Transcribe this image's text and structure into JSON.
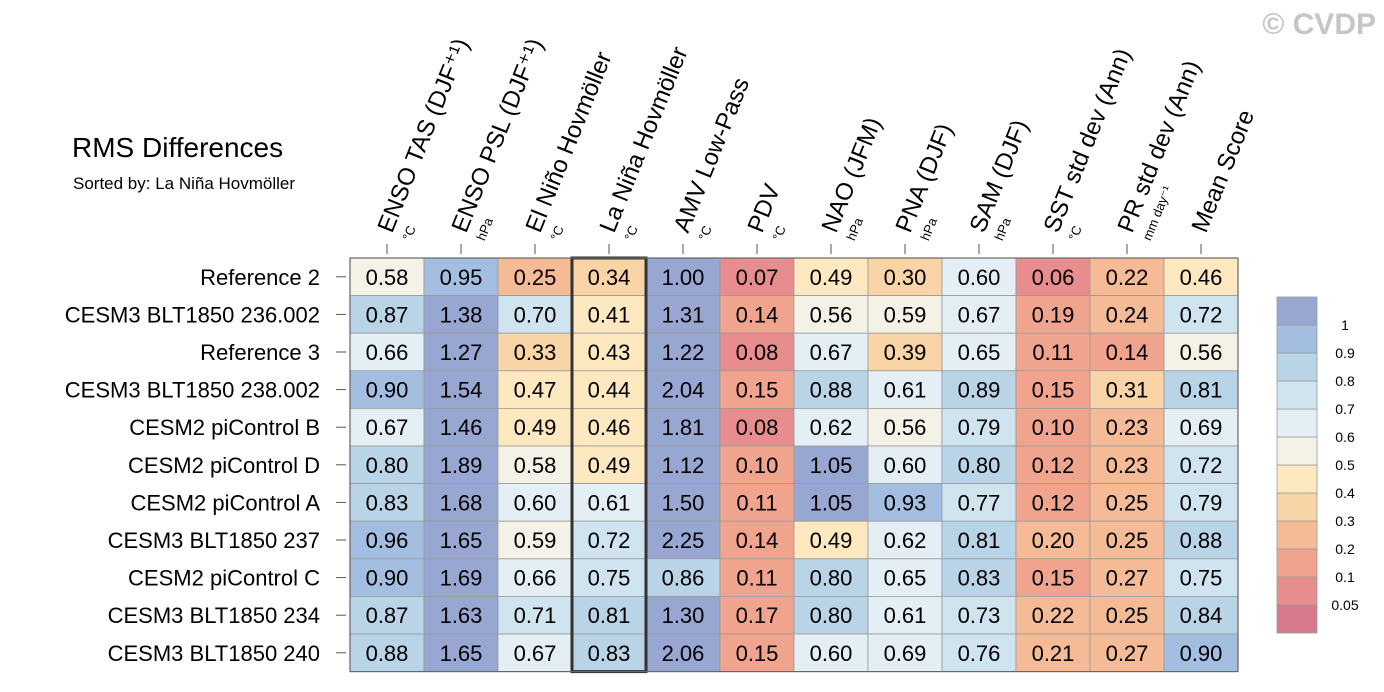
{
  "title": "RMS Differences",
  "subtitle": "Sorted by: La Niña Hovmöller",
  "watermark": "© CVDP",
  "chart_data": {
    "type": "heatmap",
    "highlight_column": 3,
    "columns": [
      {
        "name": "ENSO TAS (DJF⁺¹)",
        "unit": "°C"
      },
      {
        "name": "ENSO PSL (DJF⁺¹)",
        "unit": "hPa"
      },
      {
        "name": "El Niño Hovmöller",
        "unit": "°C"
      },
      {
        "name": "La Niña Hovmöller",
        "unit": "°C"
      },
      {
        "name": "AMV Low-Pass",
        "unit": "°C"
      },
      {
        "name": "PDV",
        "unit": "°C"
      },
      {
        "name": "NAO (JFM)",
        "unit": "hPa"
      },
      {
        "name": "PNA (DJF)",
        "unit": "hPa"
      },
      {
        "name": "SAM (DJF)",
        "unit": "hPa"
      },
      {
        "name": "SST std dev (Ann)",
        "unit": "°C"
      },
      {
        "name": "PR std dev (Ann)",
        "unit": "mm day⁻¹"
      },
      {
        "name": "Mean Score",
        "unit": ""
      }
    ],
    "rows": [
      {
        "name": "Reference 2",
        "values": [
          0.58,
          0.95,
          0.25,
          0.34,
          1.0,
          0.07,
          0.49,
          0.3,
          0.6,
          0.06,
          0.22,
          0.46
        ]
      },
      {
        "name": "CESM3 BLT1850 236.002",
        "values": [
          0.87,
          1.38,
          0.7,
          0.41,
          1.31,
          0.14,
          0.56,
          0.59,
          0.67,
          0.19,
          0.24,
          0.72
        ]
      },
      {
        "name": "Reference 3",
        "values": [
          0.66,
          1.27,
          0.33,
          0.43,
          1.22,
          0.08,
          0.67,
          0.39,
          0.65,
          0.11,
          0.14,
          0.56
        ]
      },
      {
        "name": "CESM3 BLT1850 238.002",
        "values": [
          0.9,
          1.54,
          0.47,
          0.44,
          2.04,
          0.15,
          0.88,
          0.61,
          0.89,
          0.15,
          0.31,
          0.81
        ]
      },
      {
        "name": "CESM2 piControl B",
        "values": [
          0.67,
          1.46,
          0.49,
          0.46,
          1.81,
          0.08,
          0.62,
          0.56,
          0.79,
          0.1,
          0.23,
          0.69
        ]
      },
      {
        "name": "CESM2 piControl D",
        "values": [
          0.8,
          1.89,
          0.58,
          0.49,
          1.12,
          0.1,
          1.05,
          0.6,
          0.8,
          0.12,
          0.23,
          0.72
        ]
      },
      {
        "name": "CESM2 piControl A",
        "values": [
          0.83,
          1.68,
          0.6,
          0.61,
          1.5,
          0.11,
          1.05,
          0.93,
          0.77,
          0.12,
          0.25,
          0.79
        ]
      },
      {
        "name": "CESM3 BLT1850 237",
        "values": [
          0.96,
          1.65,
          0.59,
          0.72,
          2.25,
          0.14,
          0.49,
          0.62,
          0.81,
          0.2,
          0.25,
          0.88
        ]
      },
      {
        "name": "CESM2 piControl C",
        "values": [
          0.9,
          1.69,
          0.66,
          0.75,
          0.86,
          0.11,
          0.8,
          0.65,
          0.83,
          0.15,
          0.27,
          0.75
        ]
      },
      {
        "name": "CESM3 BLT1850 234",
        "values": [
          0.87,
          1.63,
          0.71,
          0.81,
          1.3,
          0.17,
          0.8,
          0.61,
          0.73,
          0.22,
          0.25,
          0.84
        ]
      },
      {
        "name": "CESM3 BLT1850 240",
        "values": [
          0.88,
          1.65,
          0.67,
          0.83,
          2.06,
          0.15,
          0.6,
          0.69,
          0.76,
          0.21,
          0.27,
          0.9
        ]
      }
    ],
    "colorbar": {
      "thresholds": [
        0.05,
        0.1,
        0.2,
        0.3,
        0.4,
        0.5,
        0.6,
        0.7,
        0.8,
        0.9,
        1
      ],
      "tick_labels": [
        "0.05",
        "0.1",
        "0.2",
        "0.3",
        "0.4",
        "0.5",
        "0.6",
        "0.7",
        "0.8",
        "0.9",
        "1"
      ],
      "colors": [
        "#d6798a",
        "#e88d8e",
        "#f0a48e",
        "#f4bb96",
        "#f9d4a6",
        "#fde8c0",
        "#f4f2e6",
        "#e3eff4",
        "#cfe4ef",
        "#b9d3e7",
        "#a3bee0",
        "#97a7d2"
      ]
    }
  }
}
